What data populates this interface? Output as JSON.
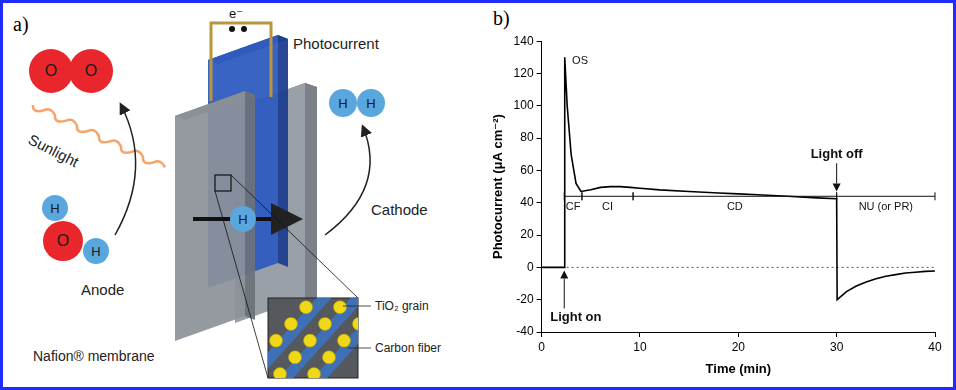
{
  "diagram": {
    "panel_label": "a)",
    "sunlight": "Sunlight",
    "oxygen": [
      "O",
      "O"
    ],
    "water": [
      "H",
      "O",
      "H"
    ],
    "hydrogen": [
      "H",
      "H"
    ],
    "proton": "H",
    "electron": "e⁻",
    "photocurrent": "Photocurrent",
    "anode": "Anode",
    "cathode": "Cathode",
    "membrane": "Nafion® membrane",
    "inset": [
      "TiO₂ grain",
      "Carbon fiber"
    ]
  },
  "chart_data": {
    "type": "line",
    "panel_label": "b)",
    "x_label": "Time (min)",
    "y_label": "Photocurrent (μA cm⁻²)",
    "x": [
      0,
      2.3,
      2.35,
      2.6,
      3,
      3.5,
      4,
      5,
      6,
      7,
      8,
      9,
      10,
      12,
      15,
      18,
      20,
      22,
      25,
      28,
      30,
      30.05,
      31,
      32,
      33,
      34,
      35,
      36,
      37,
      38,
      39,
      40
    ],
    "values": [
      0,
      0,
      130,
      100,
      70,
      52,
      47,
      48,
      49.5,
      50,
      50,
      49.5,
      49,
      48,
      47,
      46,
      45.5,
      45,
      44,
      43,
      42.5,
      -20,
      -15,
      -11.5,
      -9,
      -7,
      -5.5,
      -4.5,
      -3.5,
      -3,
      -2.5,
      -2.2
    ],
    "color": "#000000",
    "xlim": [
      0,
      40
    ],
    "xticks": [
      0,
      10,
      20,
      30,
      40
    ],
    "ylim": [
      -40,
      140
    ],
    "yticks": [
      -40,
      -20,
      0,
      20,
      40,
      60,
      80,
      100,
      120,
      140
    ],
    "grid": false,
    "reference_lines": [
      {
        "value": 0,
        "line_style": "dotted"
      }
    ],
    "phases": [
      {
        "label": "CF",
        "start": 2.3,
        "end": 4.1,
        "level": 44
      },
      {
        "label": "CI",
        "start": 4.1,
        "end": 9.3,
        "level": 44
      },
      {
        "label": "CD",
        "start": 9.3,
        "end": 30,
        "level": 44
      },
      {
        "label": "NU (or PR)",
        "start": 30,
        "end": 40,
        "level": 44
      }
    ],
    "annotations": [
      {
        "text": "OS",
        "x": 3.1,
        "y": 128
      },
      {
        "text": "Light on",
        "x": 2.3,
        "y": -31,
        "arrow_to_y": -2
      },
      {
        "text": "Light off",
        "x": 30,
        "y": 70,
        "arrow_to_y": 47
      }
    ]
  }
}
